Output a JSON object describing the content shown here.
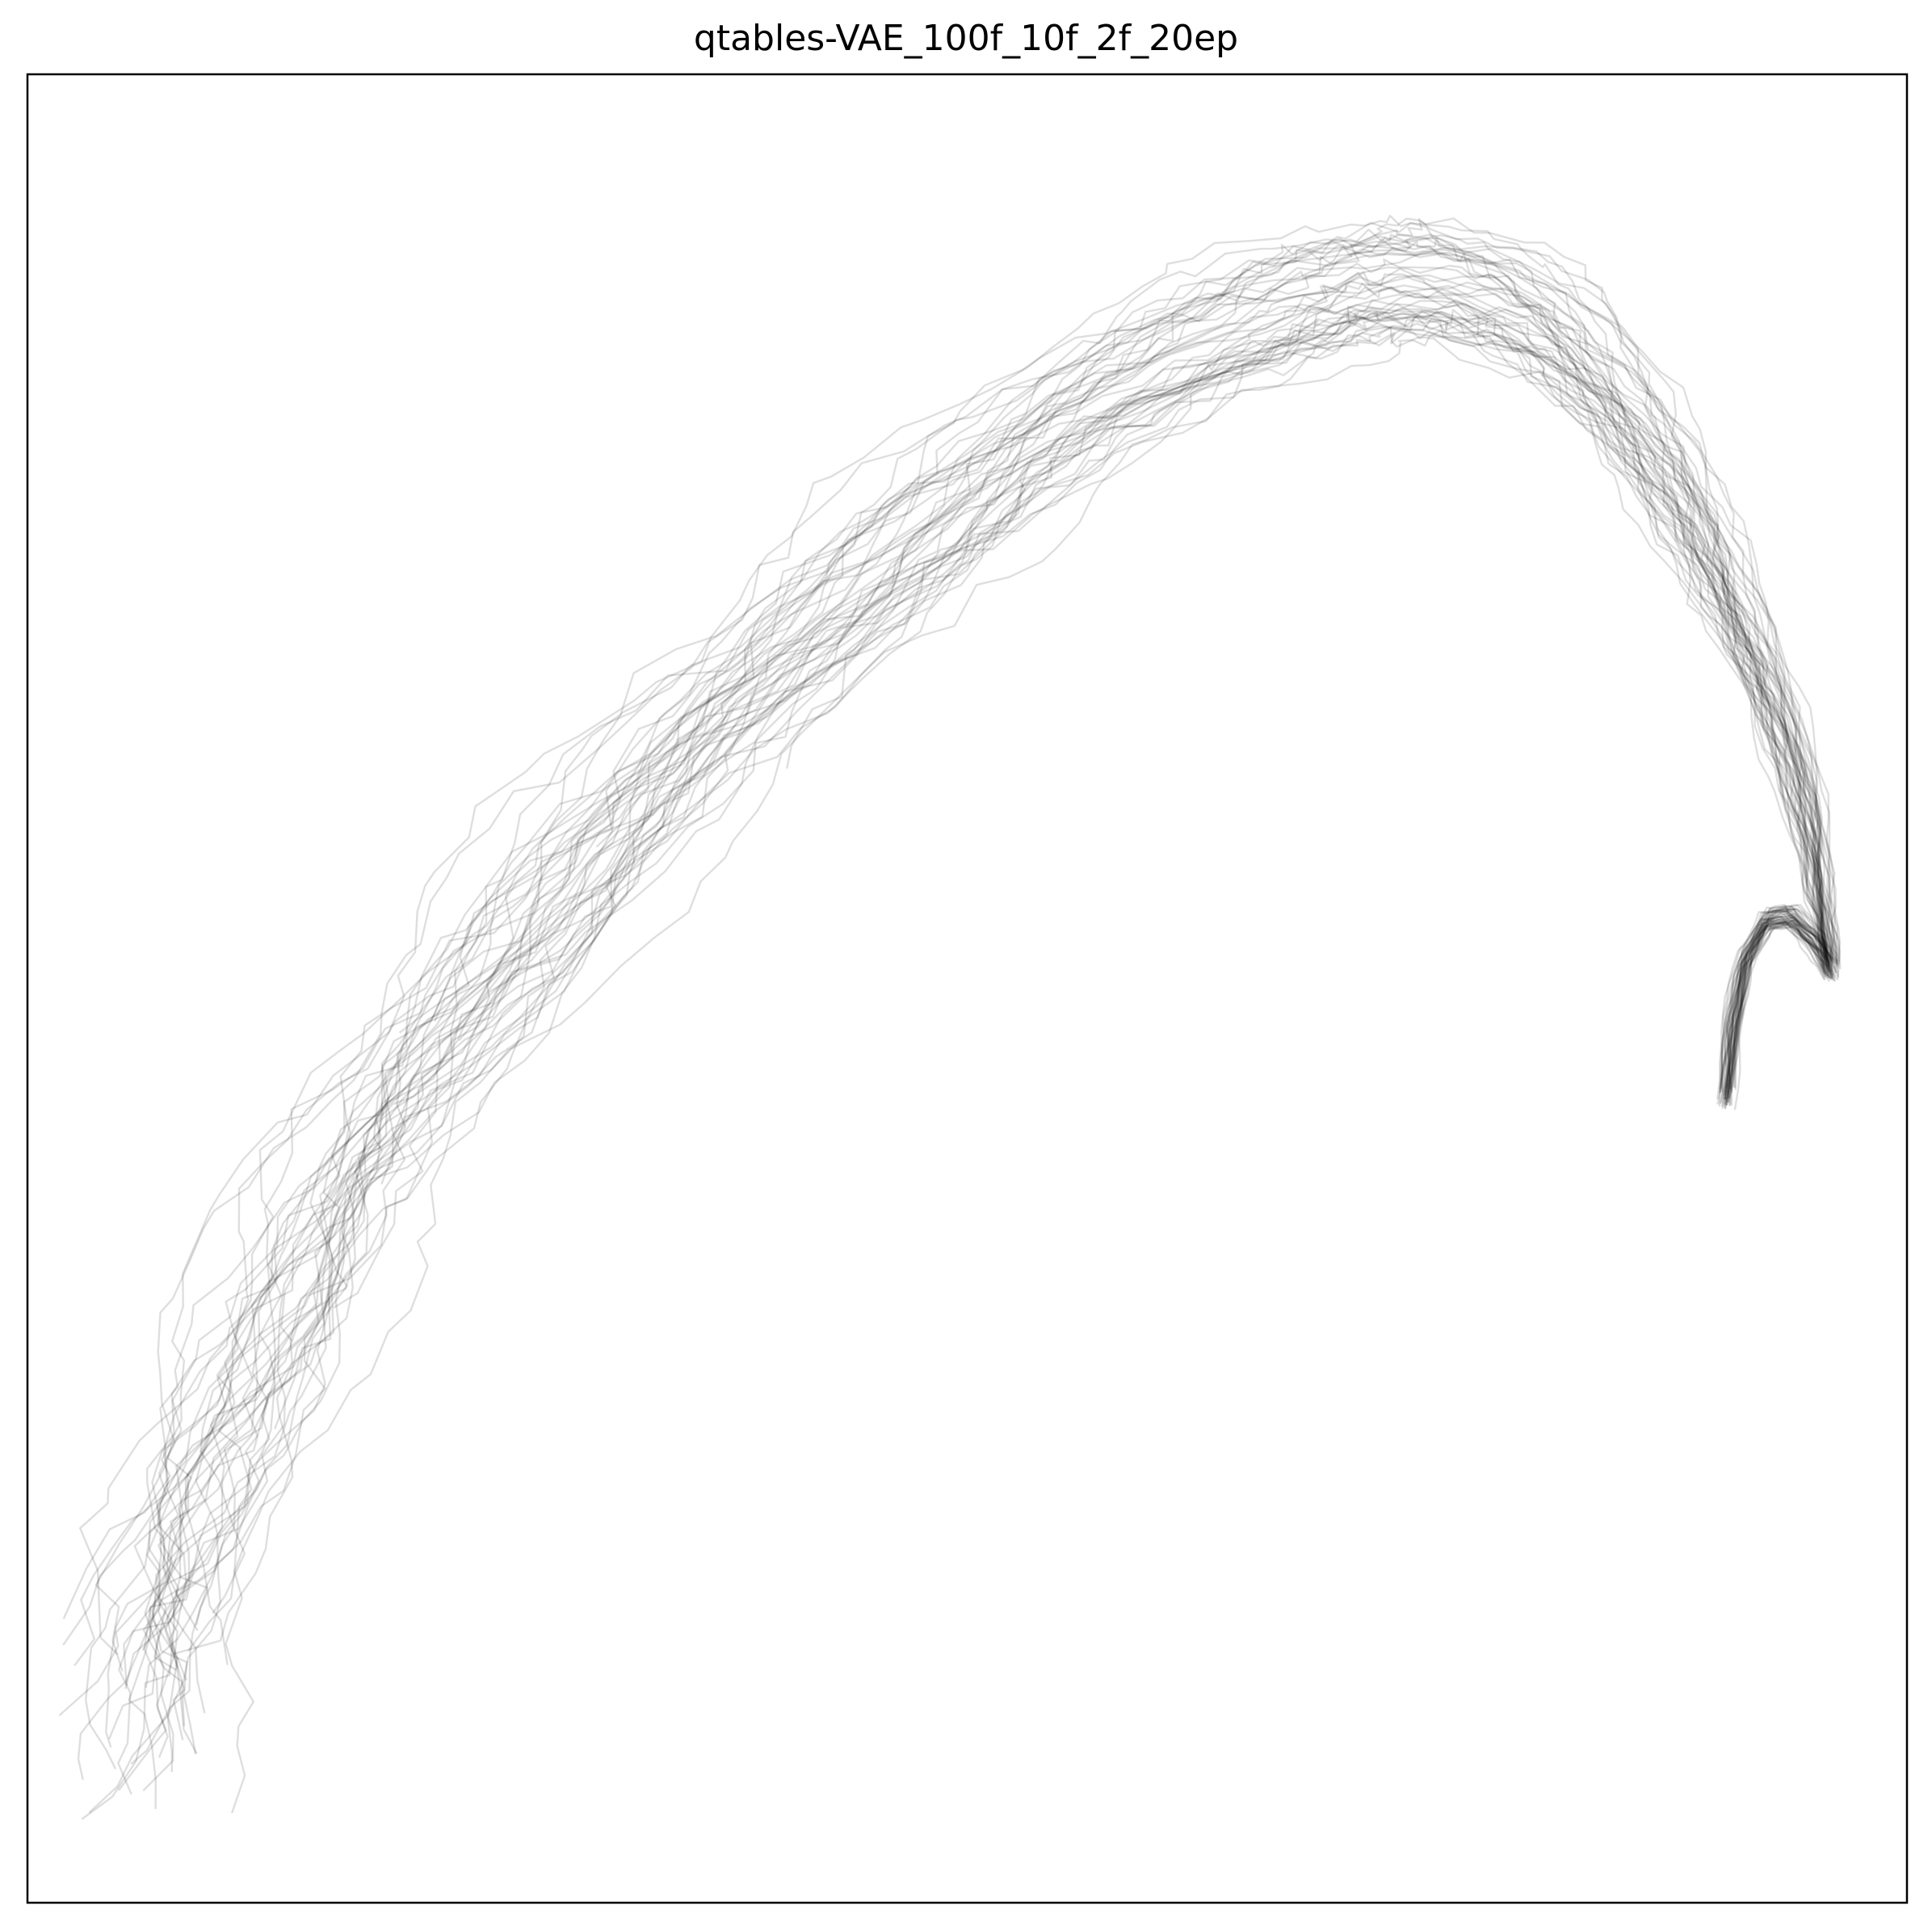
{
  "chart_data": {
    "type": "line",
    "title": "qtables-VAE_100f_10f_2f_20ep",
    "xlabel": "",
    "ylabel": "",
    "xlim": [
      0,
      100
    ],
    "ylim": [
      0,
      100
    ],
    "grid": false,
    "legend": "none",
    "line_color": "#000000",
    "line_opacity": 0.13,
    "trajectory_count": 48,
    "centerline": {
      "x": [
        6.2,
        7.5,
        9.5,
        12.0,
        15.0,
        18.5,
        22.5,
        27.0,
        32.0,
        37.5,
        43.0,
        48.0,
        53.0,
        58.0,
        63.0,
        67.5,
        71.0,
        74.0,
        77.5,
        81.0,
        84.0,
        86.5,
        88.6,
        90.5,
        92.3,
        93.8,
        94.9,
        95.5,
        96.0,
        95.2,
        93.8,
        92.6,
        91.4,
        90.7,
        90.4
      ],
      "y": [
        10.0,
        16.5,
        23.0,
        29.5,
        36.0,
        42.0,
        48.0,
        54.0,
        60.0,
        65.5,
        71.0,
        75.5,
        79.5,
        83.0,
        85.8,
        87.6,
        88.6,
        88.9,
        88.2,
        86.2,
        83.2,
        79.5,
        75.5,
        71.5,
        67.5,
        63.0,
        58.5,
        54.5,
        51.0,
        52.5,
        54.0,
        53.8,
        51.6,
        48.0,
        44.0
      ]
    }
  }
}
